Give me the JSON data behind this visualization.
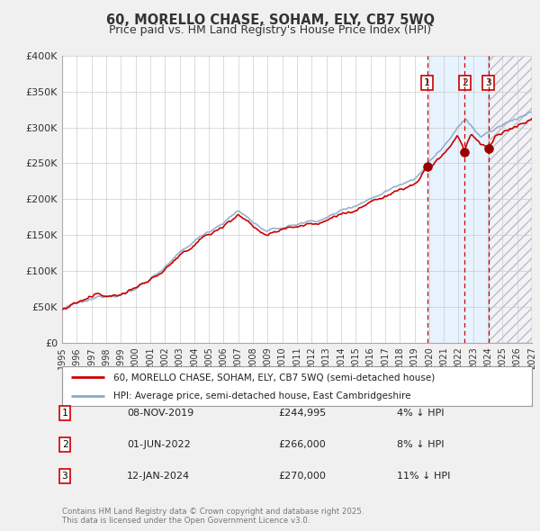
{
  "title": "60, MORELLO CHASE, SOHAM, ELY, CB7 5WQ",
  "subtitle": "Price paid vs. HM Land Registry's House Price Index (HPI)",
  "legend_line1": "60, MORELLO CHASE, SOHAM, ELY, CB7 5WQ (semi-detached house)",
  "legend_line2": "HPI: Average price, semi-detached house, East Cambridgeshire",
  "footnote": "Contains HM Land Registry data © Crown copyright and database right 2025.\nThis data is licensed under the Open Government Licence v3.0.",
  "transactions": [
    {
      "label": "1",
      "date": "08-NOV-2019",
      "price": 244995,
      "pct": "4%",
      "x": 2019.86
    },
    {
      "label": "2",
      "date": "01-JUN-2022",
      "price": 266000,
      "pct": "8%",
      "x": 2022.42
    },
    {
      "label": "3",
      "date": "12-JAN-2024",
      "price": 270000,
      "pct": "11%",
      "x": 2024.03
    }
  ],
  "transaction_price_vals": [
    244995,
    266000,
    270000
  ],
  "xlim": [
    1995,
    2027
  ],
  "ylim": [
    0,
    400000
  ],
  "yticks": [
    0,
    50000,
    100000,
    150000,
    200000,
    250000,
    300000,
    350000,
    400000
  ],
  "ytick_labels": [
    "£0",
    "£50K",
    "£100K",
    "£150K",
    "£200K",
    "£250K",
    "£300K",
    "£350K",
    "£400K"
  ],
  "price_line_color": "#cc0000",
  "hpi_line_color": "#88aacc",
  "background_color": "#f0f0f0",
  "plot_bg_color": "#ffffff",
  "grid_color": "#cccccc",
  "shade_color": "#ddeeff",
  "hatch_color": "#ddddee",
  "transaction_box_color": "#cc0000",
  "vline_color": "#cc0000",
  "title_color": "#333333",
  "label_color": "#333333",
  "footnote_color": "#777777"
}
